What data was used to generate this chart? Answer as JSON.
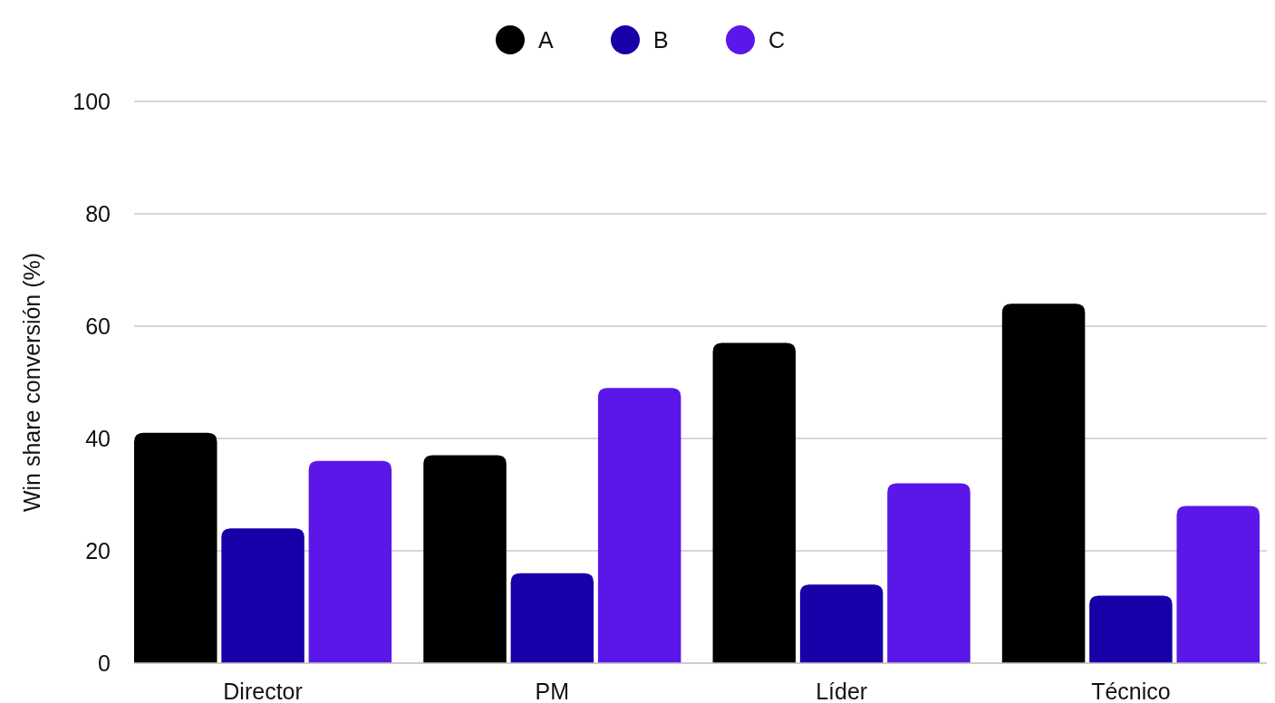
{
  "chart_data": {
    "type": "bar",
    "ylabel": "Win share conversión (%)",
    "categories": [
      "Director",
      "PM",
      "Líder",
      "Técnico"
    ],
    "series": [
      {
        "name": "A",
        "color": "#000000",
        "values": [
          41,
          37,
          57,
          64
        ]
      },
      {
        "name": "B",
        "color": "#1800a8",
        "values": [
          24,
          16,
          14,
          12
        ]
      },
      {
        "name": "C",
        "color": "#5b17e8",
        "values": [
          36,
          49,
          32,
          28
        ]
      }
    ],
    "ylim": [
      0,
      100
    ],
    "yticks": [
      0,
      20,
      40,
      60,
      80,
      100
    ],
    "grid": "y",
    "legend": "top"
  }
}
